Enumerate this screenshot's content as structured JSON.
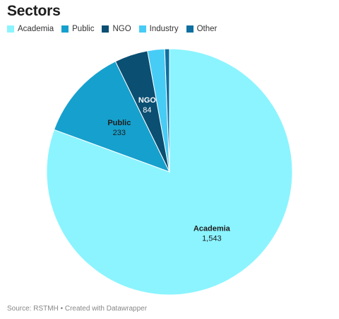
{
  "title": "Sectors",
  "footer": "Source: RSTMH • Created with Datawrapper",
  "chart_data": {
    "type": "pie",
    "title": "Sectors",
    "legend_position": "top-left",
    "start": "12 o'clock, clockwise",
    "slices": [
      {
        "label": "Academia",
        "value": 1543,
        "value_label": "1,543",
        "color": "#8bf4ff",
        "text_color": "#1d1d1d",
        "show_label": true
      },
      {
        "label": "Public",
        "value": 233,
        "value_label": "233",
        "color": "#16a0cd",
        "text_color": "#1d1d1d",
        "show_label": true
      },
      {
        "label": "NGO",
        "value": 84,
        "value_label": "84",
        "color": "#0b4f72",
        "text_color": "#ffffff",
        "show_label": true
      },
      {
        "label": "Industry",
        "value": 43,
        "value_label": "43",
        "color": "#47ccf5",
        "text_color": "#1d1d1d",
        "show_label": false
      },
      {
        "label": "Other",
        "value": 12,
        "value_label": "12",
        "color": "#0e6fa0",
        "text_color": "#ffffff",
        "show_label": false
      }
    ]
  }
}
